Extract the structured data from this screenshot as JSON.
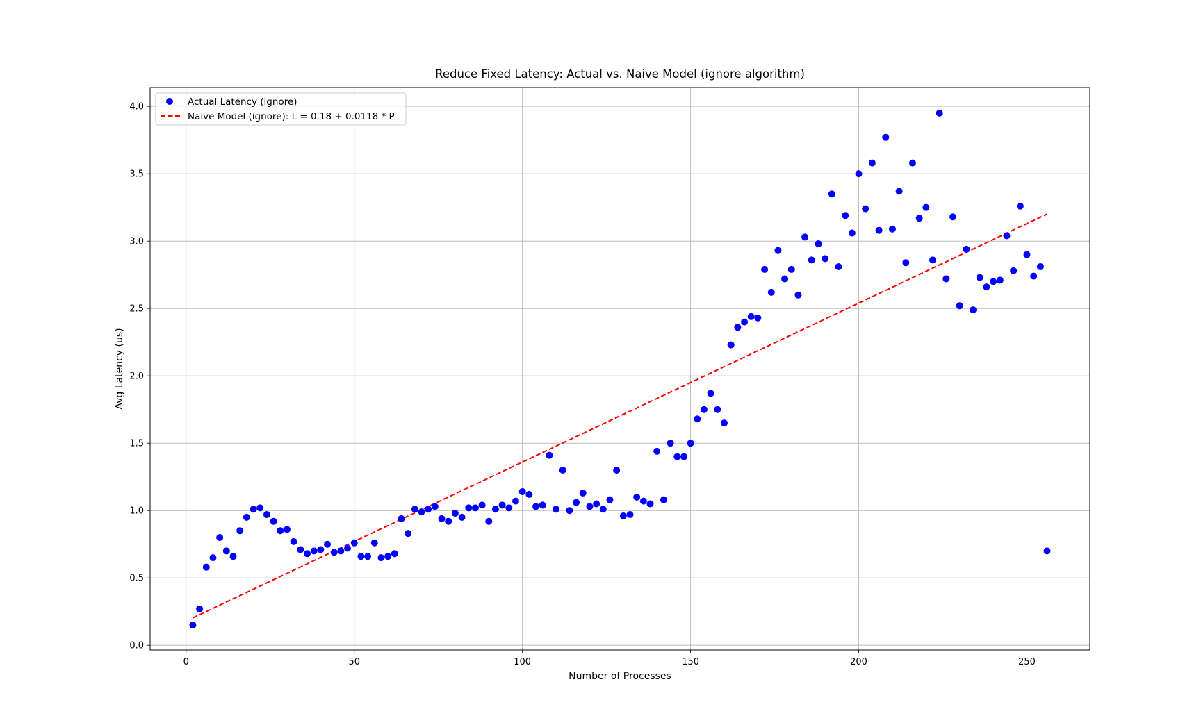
{
  "chart_data": {
    "type": "scatter",
    "title": "Reduce Fixed Latency: Actual vs. Naive Model (ignore algorithm)",
    "xlabel": "Number of Processes",
    "ylabel": "Avg Latency (us)",
    "xlim": [
      -10.7,
      268.7
    ],
    "ylim": [
      -0.035,
      4.14
    ],
    "xticks": [
      0,
      50,
      100,
      150,
      200,
      250
    ],
    "yticks": [
      0.0,
      0.5,
      1.0,
      1.5,
      2.0,
      2.5,
      3.0,
      3.5,
      4.0
    ],
    "grid": true,
    "legend_position": "top-left",
    "colors": {
      "actual": "#0000ff",
      "model": "#ff0000"
    },
    "series": [
      {
        "name": "Actual Latency (ignore)",
        "kind": "scatter",
        "x": [
          2,
          4,
          6,
          8,
          10,
          12,
          14,
          16,
          18,
          20,
          22,
          24,
          26,
          28,
          30,
          32,
          34,
          36,
          38,
          40,
          42,
          44,
          46,
          48,
          50,
          52,
          54,
          56,
          58,
          60,
          62,
          64,
          66,
          68,
          70,
          72,
          74,
          76,
          78,
          80,
          82,
          84,
          86,
          88,
          90,
          92,
          94,
          96,
          98,
          100,
          102,
          104,
          106,
          108,
          110,
          112,
          114,
          116,
          118,
          120,
          122,
          124,
          126,
          128,
          130,
          132,
          134,
          136,
          138,
          140,
          142,
          144,
          146,
          148,
          150,
          152,
          154,
          156,
          158,
          160,
          162,
          164,
          166,
          168,
          170,
          172,
          174,
          176,
          178,
          180,
          182,
          184,
          186,
          188,
          190,
          192,
          194,
          196,
          198,
          200,
          202,
          204,
          206,
          208,
          210,
          212,
          214,
          216,
          218,
          220,
          222,
          224,
          226,
          228,
          230,
          232,
          234,
          236,
          238,
          240,
          242,
          244,
          246,
          248,
          250,
          252,
          254,
          256
        ],
        "y": [
          0.15,
          0.27,
          0.58,
          0.65,
          0.8,
          0.7,
          0.66,
          0.85,
          0.95,
          1.01,
          1.02,
          0.97,
          0.92,
          0.85,
          0.86,
          0.77,
          0.71,
          0.68,
          0.7,
          0.71,
          0.75,
          0.69,
          0.7,
          0.72,
          0.76,
          0.66,
          0.66,
          0.76,
          0.65,
          0.66,
          0.68,
          0.94,
          0.83,
          1.01,
          0.99,
          1.01,
          1.03,
          0.94,
          0.92,
          0.98,
          0.95,
          1.02,
          1.02,
          1.04,
          0.92,
          1.01,
          1.04,
          1.02,
          1.07,
          1.14,
          1.12,
          1.03,
          1.04,
          1.41,
          1.01,
          1.3,
          1.0,
          1.06,
          1.13,
          1.03,
          1.05,
          1.01,
          1.08,
          1.3,
          0.96,
          0.97,
          1.1,
          1.07,
          1.05,
          1.44,
          1.08,
          1.5,
          1.4,
          1.4,
          1.5,
          1.68,
          1.75,
          1.87,
          1.75,
          1.65,
          2.23,
          2.36,
          2.4,
          2.44,
          2.43,
          2.79,
          2.62,
          2.93,
          2.72,
          2.79,
          2.6,
          3.03,
          2.86,
          2.98,
          2.87,
          3.35,
          2.81,
          3.19,
          3.06,
          3.5,
          3.24,
          3.58,
          3.08,
          3.77,
          3.09,
          3.37,
          2.84,
          3.58,
          3.17,
          3.25,
          2.86,
          3.95,
          2.72,
          3.18,
          2.52,
          2.94,
          2.49,
          2.73,
          2.66,
          2.7,
          2.71,
          3.04,
          2.78,
          3.26,
          2.9,
          2.74,
          2.81,
          0.7
        ]
      },
      {
        "name": "Naive Model (ignore): L = 0.18 + 0.0118 * P",
        "kind": "line",
        "intercept": 0.18,
        "slope": 0.0118,
        "x": [
          2,
          256
        ]
      }
    ]
  }
}
